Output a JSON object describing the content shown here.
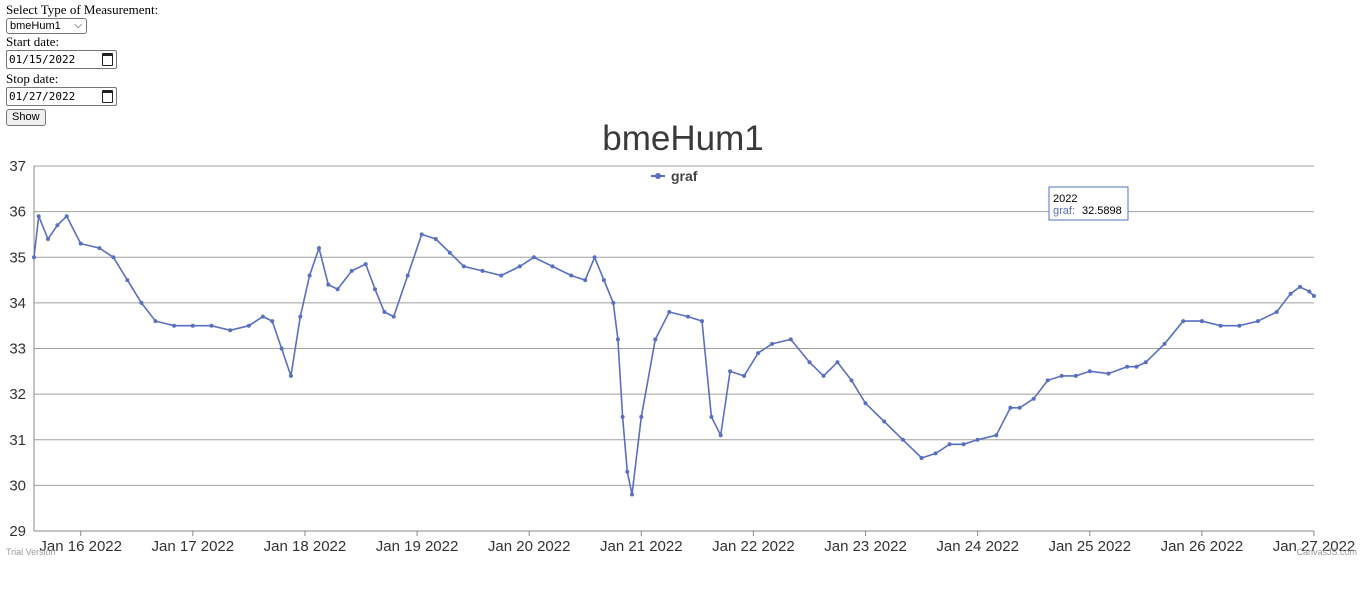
{
  "form": {
    "measurement_label": "Select Type of Measurement:",
    "measurement_value": "bmeHum1",
    "start_label": "Start date:",
    "start_value": "01/15/2022",
    "stop_label": "Stop date:",
    "stop_value": "01/27/2022",
    "show_label": "Show"
  },
  "colors": {
    "series": "#5a6fc0",
    "grid": "#a0a0a0",
    "text": "#333333"
  },
  "chart_data": {
    "type": "line",
    "title": "bmeHum1",
    "legend": {
      "text": "graf",
      "position": "top-center"
    },
    "y_range": [
      29,
      37
    ],
    "y_ticks": [
      29,
      30,
      31,
      32,
      33,
      34,
      35,
      36,
      37
    ],
    "x_range_days": [
      "Jan 15 2022 14:00",
      "Jan 27 2022 00:00"
    ],
    "x_ticks": [
      "Jan 16 2022",
      "Jan 17 2022",
      "Jan 18 2022",
      "Jan 19 2022",
      "Jan 20 2022",
      "Jan 21 2022",
      "Jan 22 2022",
      "Jan 23 2022",
      "Jan 24 2022",
      "Jan 25 2022",
      "Jan 26 2022",
      "Jan 27 2022"
    ],
    "grid": true,
    "tooltip": {
      "title": "2022",
      "series_label": "graf:",
      "value": "32.5898"
    },
    "watermark_left": "Trial Version",
    "watermark_right": "CanvasJS.com",
    "series": [
      {
        "name": "graf",
        "x": [
          "Jan 15 2022 14:00",
          "Jan 15 2022 15:00",
          "Jan 15 2022 17:00",
          "Jan 15 2022 19:00",
          "Jan 15 2022 21:00",
          "Jan 16 2022 00:00",
          "Jan 16 2022 04:00",
          "Jan 16 2022 07:00",
          "Jan 16 2022 10:00",
          "Jan 16 2022 13:00",
          "Jan 16 2022 16:00",
          "Jan 16 2022 20:00",
          "Jan 17 2022 00:00",
          "Jan 17 2022 04:00",
          "Jan 17 2022 08:00",
          "Jan 17 2022 12:00",
          "Jan 17 2022 15:00",
          "Jan 17 2022 17:00",
          "Jan 17 2022 19:00",
          "Jan 17 2022 21:00",
          "Jan 17 2022 23:00",
          "Jan 18 2022 01:00",
          "Jan 18 2022 03:00",
          "Jan 18 2022 05:00",
          "Jan 18 2022 07:00",
          "Jan 18 2022 10:00",
          "Jan 18 2022 13:00",
          "Jan 18 2022 15:00",
          "Jan 18 2022 17:00",
          "Jan 18 2022 19:00",
          "Jan 18 2022 22:00",
          "Jan 19 2022 01:00",
          "Jan 19 2022 04:00",
          "Jan 19 2022 07:00",
          "Jan 19 2022 10:00",
          "Jan 19 2022 14:00",
          "Jan 19 2022 18:00",
          "Jan 19 2022 22:00",
          "Jan 20 2022 01:00",
          "Jan 20 2022 05:00",
          "Jan 20 2022 09:00",
          "Jan 20 2022 12:00",
          "Jan 20 2022 14:00",
          "Jan 20 2022 16:00",
          "Jan 20 2022 18:00",
          "Jan 20 2022 19:00",
          "Jan 20 2022 20:00",
          "Jan 20 2022 21:00",
          "Jan 20 2022 22:00",
          "Jan 21 2022 00:00",
          "Jan 21 2022 03:00",
          "Jan 21 2022 06:00",
          "Jan 21 2022 10:00",
          "Jan 21 2022 13:00",
          "Jan 21 2022 15:00",
          "Jan 21 2022 17:00",
          "Jan 21 2022 19:00",
          "Jan 21 2022 22:00",
          "Jan 22 2022 01:00",
          "Jan 22 2022 04:00",
          "Jan 22 2022 08:00",
          "Jan 22 2022 12:00",
          "Jan 22 2022 15:00",
          "Jan 22 2022 18:00",
          "Jan 22 2022 21:00",
          "Jan 23 2022 00:00",
          "Jan 23 2022 04:00",
          "Jan 23 2022 08:00",
          "Jan 23 2022 12:00",
          "Jan 23 2022 15:00",
          "Jan 23 2022 18:00",
          "Jan 23 2022 21:00",
          "Jan 24 2022 00:00",
          "Jan 24 2022 04:00",
          "Jan 24 2022 07:00",
          "Jan 24 2022 09:00",
          "Jan 24 2022 12:00",
          "Jan 24 2022 15:00",
          "Jan 24 2022 18:00",
          "Jan 24 2022 21:00",
          "Jan 25 2022 00:00",
          "Jan 25 2022 04:00",
          "Jan 25 2022 08:00",
          "Jan 25 2022 10:00",
          "Jan 25 2022 12:00",
          "Jan 25 2022 16:00",
          "Jan 25 2022 20:00",
          "Jan 26 2022 00:00",
          "Jan 26 2022 04:00",
          "Jan 26 2022 08:00",
          "Jan 26 2022 12:00",
          "Jan 26 2022 16:00",
          "Jan 26 2022 19:00",
          "Jan 26 2022 21:00",
          "Jan 26 2022 23:00",
          "Jan 27 2022 00:00"
        ],
        "values": [
          35.0,
          35.9,
          35.4,
          35.7,
          35.9,
          35.3,
          35.2,
          35.0,
          34.5,
          34.0,
          33.6,
          33.5,
          33.5,
          33.5,
          33.4,
          33.5,
          33.7,
          33.6,
          33.0,
          32.4,
          33.7,
          34.6,
          35.2,
          34.4,
          34.3,
          34.7,
          34.85,
          34.3,
          33.8,
          33.7,
          34.6,
          35.5,
          35.4,
          35.1,
          34.8,
          34.7,
          34.6,
          34.8,
          35.0,
          34.8,
          34.6,
          34.5,
          35.0,
          34.5,
          34.0,
          33.2,
          31.5,
          30.3,
          29.8,
          31.5,
          33.2,
          33.8,
          33.7,
          33.6,
          31.5,
          31.1,
          32.5,
          32.4,
          32.9,
          33.1,
          33.2,
          32.7,
          32.4,
          32.7,
          32.3,
          31.8,
          31.4,
          31.0,
          30.6,
          30.7,
          30.9,
          30.9,
          31.0,
          31.1,
          31.7,
          31.7,
          31.9,
          32.3,
          32.4,
          32.4,
          32.5,
          32.45,
          32.6,
          32.6,
          32.7,
          33.1,
          33.6,
          33.6,
          33.5,
          33.5,
          33.6,
          33.8,
          34.2,
          34.35,
          34.25,
          34.15
        ]
      }
    ]
  }
}
